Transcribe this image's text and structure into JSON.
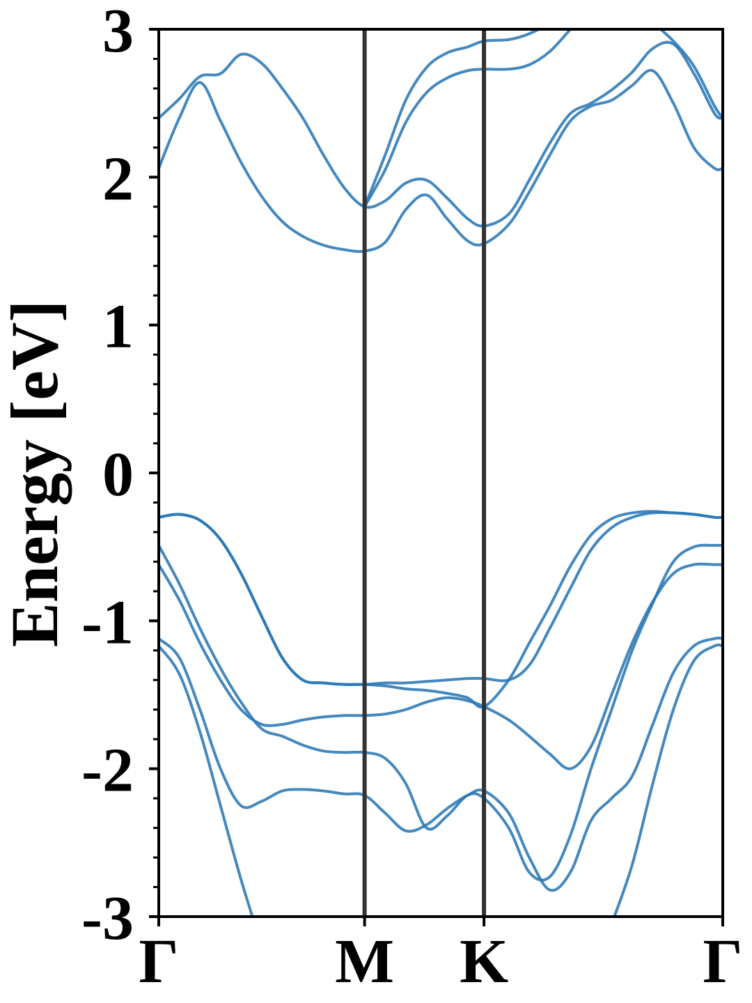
{
  "chart_data": {
    "type": "line",
    "title": "",
    "xlabel": "",
    "ylabel": "Energy [eV]",
    "ylim": [
      -3,
      3
    ],
    "yticks": [
      "-3",
      "-2",
      "-1",
      "0",
      "1",
      "2",
      "3"
    ],
    "xlim": [
      0,
      2.74
    ],
    "kpoints": [
      {
        "label": "Γ",
        "x": 0
      },
      {
        "label": "M",
        "x": 1.0
      },
      {
        "label": "K",
        "x": 1.58
      },
      {
        "label": "Γ",
        "x": 2.74
      }
    ],
    "grid": false,
    "legend": "none",
    "colors": {
      "band": "#2a77b5",
      "kline": "#333333",
      "axis": "#000000"
    },
    "series": [
      {
        "x": [
          0,
          0.1,
          0.2,
          0.3,
          0.4,
          0.5,
          0.6,
          0.7,
          0.8,
          0.9,
          1.0,
          1.1,
          1.2,
          1.3,
          1.4,
          1.5,
          1.58,
          1.7,
          1.8,
          1.9,
          2.0,
          2.1,
          2.2,
          2.3,
          2.4,
          2.5,
          2.6,
          2.7,
          2.74
        ],
        "y": [
          -1.17,
          -1.36,
          -1.75,
          -2.25,
          -2.75,
          -3.2,
          null,
          null,
          null,
          null,
          null,
          null,
          null,
          null,
          null,
          null,
          null,
          null,
          null,
          null,
          null,
          null,
          -3.05,
          -2.65,
          -2.1,
          -1.6,
          -1.27,
          -1.17,
          -1.17
        ]
      },
      {
        "x": [
          0,
          0.1,
          0.2,
          0.3,
          0.4,
          0.5,
          0.6,
          0.7,
          0.8,
          0.9,
          1.0,
          1.1,
          1.2,
          1.3,
          1.4,
          1.5,
          1.58,
          1.7,
          1.8,
          1.9,
          2.0,
          2.1,
          2.2,
          2.3,
          2.4,
          2.5,
          2.6,
          2.7,
          2.74
        ],
        "y": [
          -1.12,
          -1.25,
          -1.6,
          -2.0,
          -2.25,
          -2.22,
          -2.15,
          -2.14,
          -2.15,
          -2.17,
          -2.18,
          -2.3,
          -2.42,
          -2.38,
          -2.27,
          -2.18,
          -2.15,
          -2.3,
          -2.6,
          -2.82,
          -2.7,
          -2.35,
          -2.2,
          -2.05,
          -1.7,
          -1.35,
          -1.17,
          -1.12,
          -1.12
        ]
      },
      {
        "x": [
          0,
          0.1,
          0.2,
          0.3,
          0.4,
          0.5,
          0.6,
          0.7,
          0.8,
          0.9,
          1.0,
          1.1,
          1.2,
          1.3,
          1.4,
          1.5,
          1.58,
          1.7,
          1.8,
          1.9,
          2.0,
          2.1,
          2.2,
          2.3,
          2.4,
          2.5,
          2.6,
          2.7,
          2.74
        ],
        "y": [
          -0.62,
          -0.86,
          -1.15,
          -1.4,
          -1.6,
          -1.7,
          -1.7,
          -1.67,
          -1.65,
          -1.64,
          -1.64,
          -1.63,
          -1.6,
          -1.55,
          -1.52,
          -1.54,
          -1.58,
          -1.67,
          -1.78,
          -1.9,
          -2.0,
          -1.85,
          -1.5,
          -1.15,
          -0.87,
          -0.68,
          -0.62,
          -0.62,
          -0.62
        ]
      },
      {
        "x": [
          0,
          0.1,
          0.2,
          0.3,
          0.4,
          0.5,
          0.6,
          0.7,
          0.8,
          0.9,
          1.0,
          1.1,
          1.2,
          1.3,
          1.4,
          1.5,
          1.58,
          1.7,
          1.8,
          1.9,
          2.0,
          2.1,
          2.2,
          2.3,
          2.4,
          2.5,
          2.6,
          2.7,
          2.74
        ],
        "y": [
          -0.49,
          -0.75,
          -1.05,
          -1.32,
          -1.55,
          -1.73,
          -1.78,
          -1.84,
          -1.88,
          -1.89,
          -1.89,
          -1.93,
          -2.1,
          -2.4,
          -2.32,
          -2.18,
          -2.2,
          -2.4,
          -2.7,
          -2.73,
          -2.45,
          -2.0,
          -1.6,
          -1.2,
          -0.88,
          -0.6,
          -0.5,
          -0.49,
          -0.49
        ]
      },
      {
        "x": [
          0,
          0.1,
          0.2,
          0.3,
          0.4,
          0.5,
          0.6,
          0.7,
          0.8,
          0.9,
          1.0,
          1.1,
          1.2,
          1.3,
          1.4,
          1.5,
          1.58,
          1.7,
          1.8,
          1.9,
          2.0,
          2.1,
          2.2,
          2.3,
          2.4,
          2.5,
          2.6,
          2.7,
          2.74
        ],
        "y": [
          -0.3,
          -0.28,
          -0.32,
          -0.45,
          -0.68,
          -0.97,
          -1.25,
          -1.4,
          -1.42,
          -1.43,
          -1.43,
          -1.42,
          -1.42,
          -1.41,
          -1.4,
          -1.39,
          -1.39,
          -1.4,
          -1.3,
          -1.05,
          -0.78,
          -0.52,
          -0.37,
          -0.3,
          -0.27,
          -0.27,
          -0.28,
          -0.3,
          -0.3
        ]
      },
      {
        "x": [
          0,
          0.1,
          0.2,
          0.3,
          0.4,
          0.5,
          0.6,
          0.7,
          0.8,
          0.9,
          1.0,
          1.1,
          1.2,
          1.3,
          1.4,
          1.5,
          1.58,
          1.7,
          1.8,
          1.9,
          2.0,
          2.1,
          2.2,
          2.3,
          2.4,
          2.5,
          2.6,
          2.7,
          2.74
        ],
        "y": [
          -0.3,
          -0.28,
          -0.32,
          -0.45,
          -0.68,
          -0.97,
          -1.25,
          -1.4,
          -1.42,
          -1.43,
          -1.43,
          -1.44,
          -1.46,
          -1.47,
          -1.49,
          -1.52,
          -1.58,
          -1.4,
          -1.15,
          -0.9,
          -0.63,
          -0.42,
          -0.31,
          -0.27,
          -0.26,
          -0.27,
          -0.28,
          -0.3,
          -0.3
        ]
      },
      {
        "x": [
          0,
          0.1,
          0.2,
          0.3,
          0.4,
          0.5,
          0.6,
          0.7,
          0.8,
          0.9,
          1.0,
          1.1,
          1.2,
          1.3,
          1.4,
          1.5,
          1.58,
          1.7,
          1.8,
          1.9,
          2.0,
          2.1,
          2.2,
          2.3,
          2.4,
          2.5,
          2.6,
          2.7,
          2.74
        ],
        "y": [
          2.06,
          2.4,
          2.64,
          2.38,
          2.1,
          1.87,
          1.7,
          1.6,
          1.54,
          1.51,
          1.5,
          1.56,
          1.78,
          1.88,
          1.72,
          1.57,
          1.55,
          1.68,
          1.9,
          2.15,
          2.38,
          2.48,
          2.52,
          2.62,
          2.72,
          2.5,
          2.2,
          2.06,
          2.06
        ]
      },
      {
        "x": [
          0,
          0.1,
          0.2,
          0.3,
          0.4,
          0.5,
          0.6,
          0.7,
          0.8,
          0.9,
          1.0,
          1.1,
          1.2,
          1.3,
          1.4,
          1.5,
          1.58,
          1.7,
          1.8,
          1.9,
          2.0,
          2.1,
          2.2,
          2.3,
          2.4,
          2.5,
          2.6,
          2.7,
          2.74
        ],
        "y": [
          2.4,
          2.53,
          2.68,
          2.7,
          2.83,
          2.77,
          2.6,
          2.4,
          2.15,
          1.93,
          1.8,
          1.84,
          1.96,
          1.98,
          1.86,
          1.72,
          1.67,
          1.75,
          1.98,
          2.23,
          2.43,
          2.5,
          2.59,
          2.71,
          2.87,
          2.9,
          2.7,
          2.43,
          2.4
        ]
      },
      {
        "x": [
          1.0,
          1.1,
          1.2,
          1.3,
          1.4,
          1.5,
          1.58,
          1.7,
          1.8,
          1.9,
          2.0
        ],
        "y": [
          1.8,
          2.15,
          2.52,
          2.74,
          2.84,
          2.88,
          2.92,
          2.93,
          2.97,
          3.05,
          3.2
        ]
      },
      {
        "x": [
          1.0,
          1.1,
          1.2,
          1.3,
          1.4,
          1.5,
          1.58,
          1.7,
          1.8,
          1.9,
          2.0
        ],
        "y": [
          1.8,
          2.05,
          2.37,
          2.57,
          2.67,
          2.72,
          2.73,
          2.73,
          2.76,
          2.85,
          3.0
        ]
      },
      {
        "x": [
          2.3,
          2.4,
          2.5,
          2.6,
          2.7,
          2.74
        ],
        "y": [
          3.2,
          3.05,
          2.92,
          2.75,
          2.48,
          2.4
        ]
      }
    ]
  }
}
